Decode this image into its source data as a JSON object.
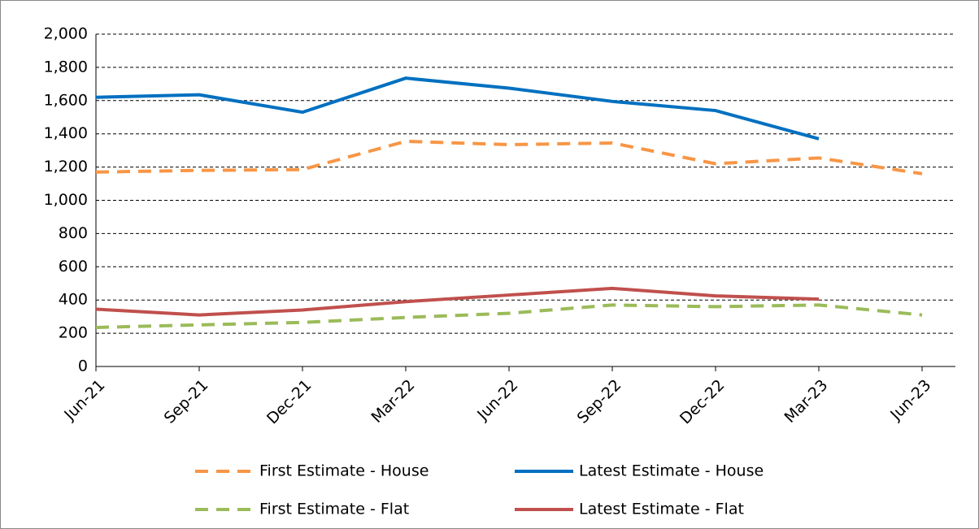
{
  "chart_data": {
    "type": "line",
    "categories": [
      "Jun-21",
      "Sep-21",
      "Dec-21",
      "Mar-22",
      "Jun-22",
      "Sep-22",
      "Dec-22",
      "Mar-23",
      "Jun-23"
    ],
    "series": [
      {
        "name": "First Estimate - House",
        "color": "#f79646",
        "dashed": true,
        "values": [
          1170,
          1180,
          1185,
          1355,
          1335,
          1345,
          1220,
          1255,
          1160
        ]
      },
      {
        "name": "Latest Estimate - House",
        "color": "#0070c0",
        "dashed": false,
        "values": [
          1620,
          1635,
          1530,
          1735,
          1675,
          1595,
          1540,
          1370,
          null
        ]
      },
      {
        "name": "First Estimate - Flat",
        "color": "#9bbb59",
        "dashed": true,
        "values": [
          235,
          250,
          265,
          295,
          320,
          370,
          360,
          370,
          310
        ]
      },
      {
        "name": "Latest Estimate - Flat",
        "color": "#c0504d",
        "dashed": false,
        "values": [
          345,
          310,
          340,
          390,
          430,
          470,
          425,
          405,
          null
        ]
      }
    ],
    "ylim": [
      0,
      2000
    ],
    "yticks": [
      0,
      200,
      400,
      600,
      800,
      {
        "value": 1000,
        "label": "1,000"
      },
      {
        "value": 1200,
        "label": "1,200"
      },
      {
        "value": 1400,
        "label": "1,400"
      },
      {
        "value": 1600,
        "label": "1,600"
      },
      {
        "value": 1800,
        "label": "1,800"
      },
      {
        "value": 2000,
        "label": "2,000"
      }
    ],
    "grid": true
  }
}
